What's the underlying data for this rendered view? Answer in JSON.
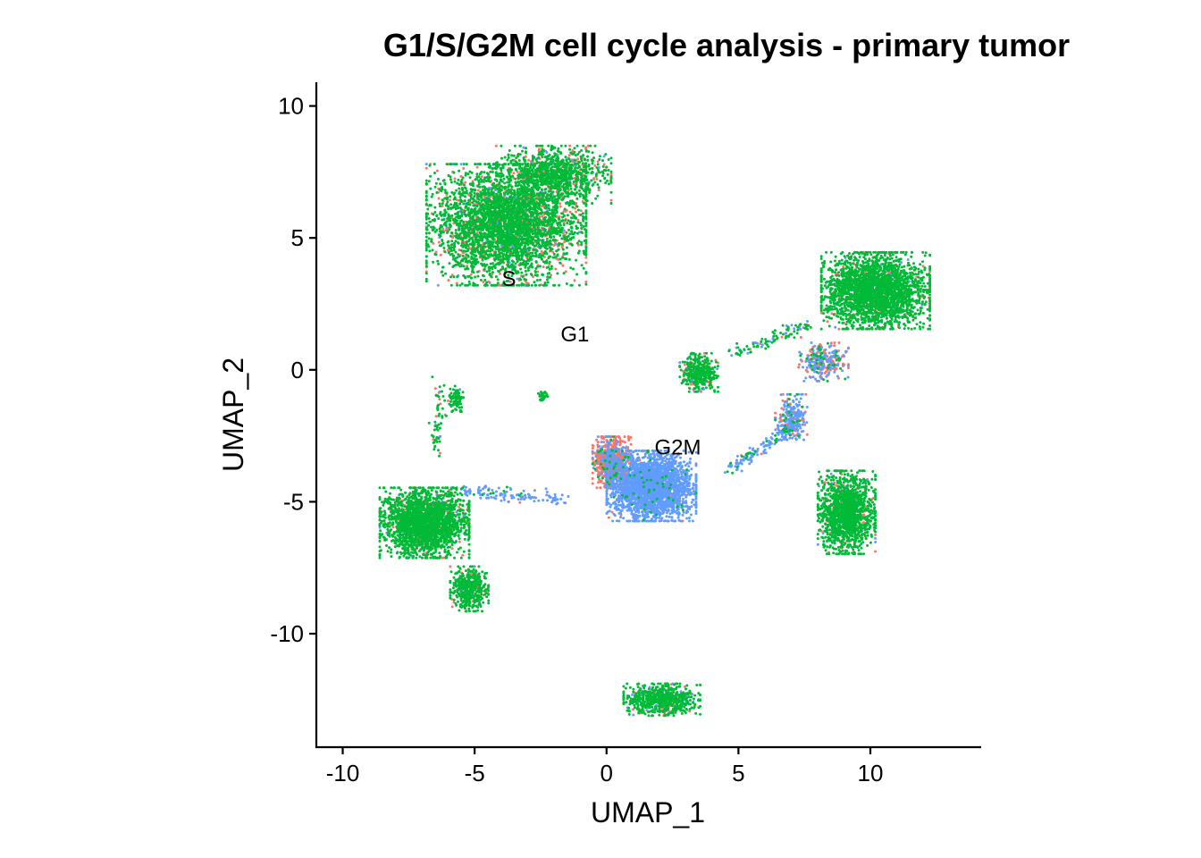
{
  "chart_data": {
    "type": "scatter",
    "title": "G1/S/G2M cell cycle analysis - primary tumor",
    "xlabel": "UMAP_1",
    "ylabel": "UMAP_2",
    "xlim": [
      -11,
      14.2
    ],
    "ylim": [
      -14.3,
      10.9
    ],
    "xticks": [
      -10,
      -5,
      0,
      5,
      10
    ],
    "yticks": [
      -10,
      -5,
      0,
      5,
      10
    ],
    "grid": false,
    "legend": "none",
    "series": [
      {
        "name": "G1",
        "color": "#F8766D"
      },
      {
        "name": "G2M",
        "color": "#619CFF"
      },
      {
        "name": "S",
        "color": "#00BA38"
      }
    ],
    "cluster_labels": [
      {
        "text": "S",
        "x": -3.7,
        "y": 3.4
      },
      {
        "text": "G1",
        "x": -1.2,
        "y": 1.3
      },
      {
        "text": "G2M",
        "x": 2.7,
        "y": -3.0
      }
    ],
    "clusters": [
      {
        "center": [
          -3.8,
          5.5
        ],
        "spread": [
          2.5,
          1.9
        ],
        "n": 3800,
        "mix": [
          0.18,
          0.04,
          0.78
        ]
      },
      {
        "center": [
          -2.0,
          7.4
        ],
        "spread": [
          1.8,
          0.9
        ],
        "n": 1000,
        "mix": [
          0.15,
          0.05,
          0.8
        ]
      },
      {
        "center": [
          10.2,
          3.0
        ],
        "spread": [
          1.7,
          1.2
        ],
        "n": 2600,
        "mix": [
          0.06,
          0.03,
          0.91
        ]
      },
      {
        "center": [
          8.2,
          0.3
        ],
        "spread": [
          0.8,
          0.6
        ],
        "n": 300,
        "mix": [
          0.4,
          0.45,
          0.15
        ]
      },
      {
        "center": [
          7.0,
          -1.9
        ],
        "spread": [
          0.5,
          0.8
        ],
        "n": 260,
        "mix": [
          0.3,
          0.6,
          0.1
        ]
      },
      {
        "center": [
          1.7,
          -4.4
        ],
        "spread": [
          1.4,
          1.1
        ],
        "n": 2600,
        "mix": [
          0.02,
          0.96,
          0.02
        ]
      },
      {
        "center": [
          0.2,
          -3.5
        ],
        "spread": [
          0.6,
          0.8
        ],
        "n": 800,
        "mix": [
          0.8,
          0.16,
          0.04
        ]
      },
      {
        "center": [
          9.1,
          -5.4
        ],
        "spread": [
          0.9,
          1.3
        ],
        "n": 1500,
        "mix": [
          0.07,
          0.03,
          0.9
        ]
      },
      {
        "center": [
          -6.9,
          -5.8
        ],
        "spread": [
          1.4,
          1.1
        ],
        "n": 2300,
        "mix": [
          0.1,
          0.03,
          0.87
        ]
      },
      {
        "center": [
          -5.2,
          -8.3
        ],
        "spread": [
          0.6,
          0.7
        ],
        "n": 450,
        "mix": [
          0.08,
          0.07,
          0.85
        ]
      },
      {
        "center": [
          2.1,
          -12.5
        ],
        "spread": [
          1.2,
          0.5
        ],
        "n": 700,
        "mix": [
          0.08,
          0.1,
          0.82
        ]
      },
      {
        "center": [
          3.5,
          -0.1
        ],
        "spread": [
          0.6,
          0.6
        ],
        "n": 400,
        "mix": [
          0.12,
          0.08,
          0.8
        ]
      },
      {
        "center": [
          -5.7,
          -1.1
        ],
        "spread": [
          0.25,
          0.4
        ],
        "n": 80,
        "mix": [
          0.05,
          0.05,
          0.9
        ]
      },
      {
        "center": [
          -2.4,
          -1.0
        ],
        "spread": [
          0.15,
          0.15
        ],
        "n": 30,
        "mix": [
          0.05,
          0.05,
          0.9
        ]
      }
    ],
    "bridges": [
      {
        "from": [
          -5.5,
          -4.6
        ],
        "to": [
          -1.5,
          -4.9
        ],
        "n": 120,
        "mix": [
          0.05,
          0.85,
          0.1
        ]
      },
      {
        "from": [
          4.7,
          -3.8
        ],
        "to": [
          7.2,
          -2.0
        ],
        "n": 140,
        "mix": [
          0.05,
          0.85,
          0.1
        ]
      },
      {
        "from": [
          4.8,
          0.6
        ],
        "to": [
          7.7,
          1.7
        ],
        "n": 100,
        "mix": [
          0.1,
          0.2,
          0.7
        ]
      },
      {
        "from": [
          -6.3,
          -0.3
        ],
        "to": [
          -6.5,
          -3.2
        ],
        "n": 60,
        "mix": [
          0.1,
          0.05,
          0.85
        ]
      }
    ]
  }
}
